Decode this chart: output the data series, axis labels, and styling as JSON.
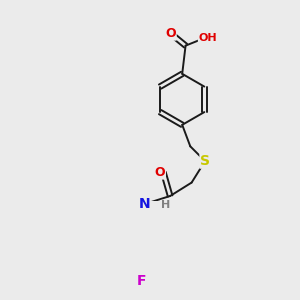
{
  "background_color": "#ebebeb",
  "bond_color": "#1a1a1a",
  "atom_colors": {
    "O": "#e00000",
    "H_gray": "#808080",
    "N": "#1414e0",
    "S": "#c8c800",
    "F": "#cc00cc"
  },
  "figsize": [
    3.0,
    3.0
  ],
  "dpi": 100
}
